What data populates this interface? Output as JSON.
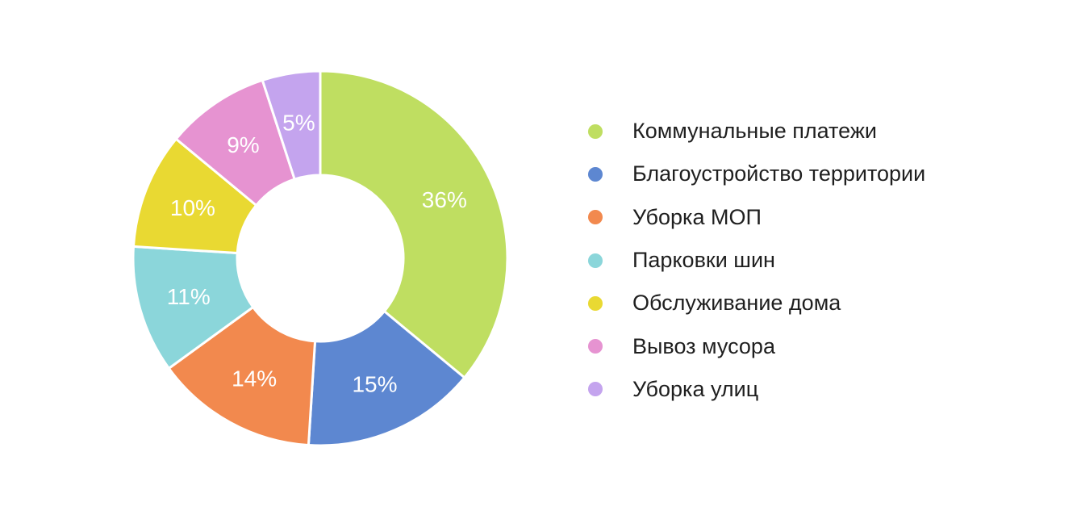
{
  "chart_data": {
    "type": "pie",
    "variant": "donut",
    "start_angle": "12 o'clock",
    "direction": "clockwise",
    "slices": [
      {
        "name": "Коммунальные платежи",
        "value": 36,
        "label": "36%",
        "color": "#BFDE61"
      },
      {
        "name": "Благоустройство территории",
        "value": 15,
        "label": "15%",
        "color": "#5D87D1"
      },
      {
        "name": "Уборка МОП",
        "value": 14,
        "label": "14%",
        "color": "#F2894E"
      },
      {
        "name": "Парковки шин",
        "value": 11,
        "label": "11%",
        "color": "#8BD6DA"
      },
      {
        "name": "Обслуживание дома",
        "value": 10,
        "label": "10%",
        "color": "#E9D932"
      },
      {
        "name": "Вывоз мусора",
        "value": 9,
        "label": "9%",
        "color": "#E693D1"
      },
      {
        "name": "Уборка улиц",
        "value": 5,
        "label": "5%",
        "color": "#C4A4EE"
      }
    ],
    "legend_placement": "right"
  }
}
